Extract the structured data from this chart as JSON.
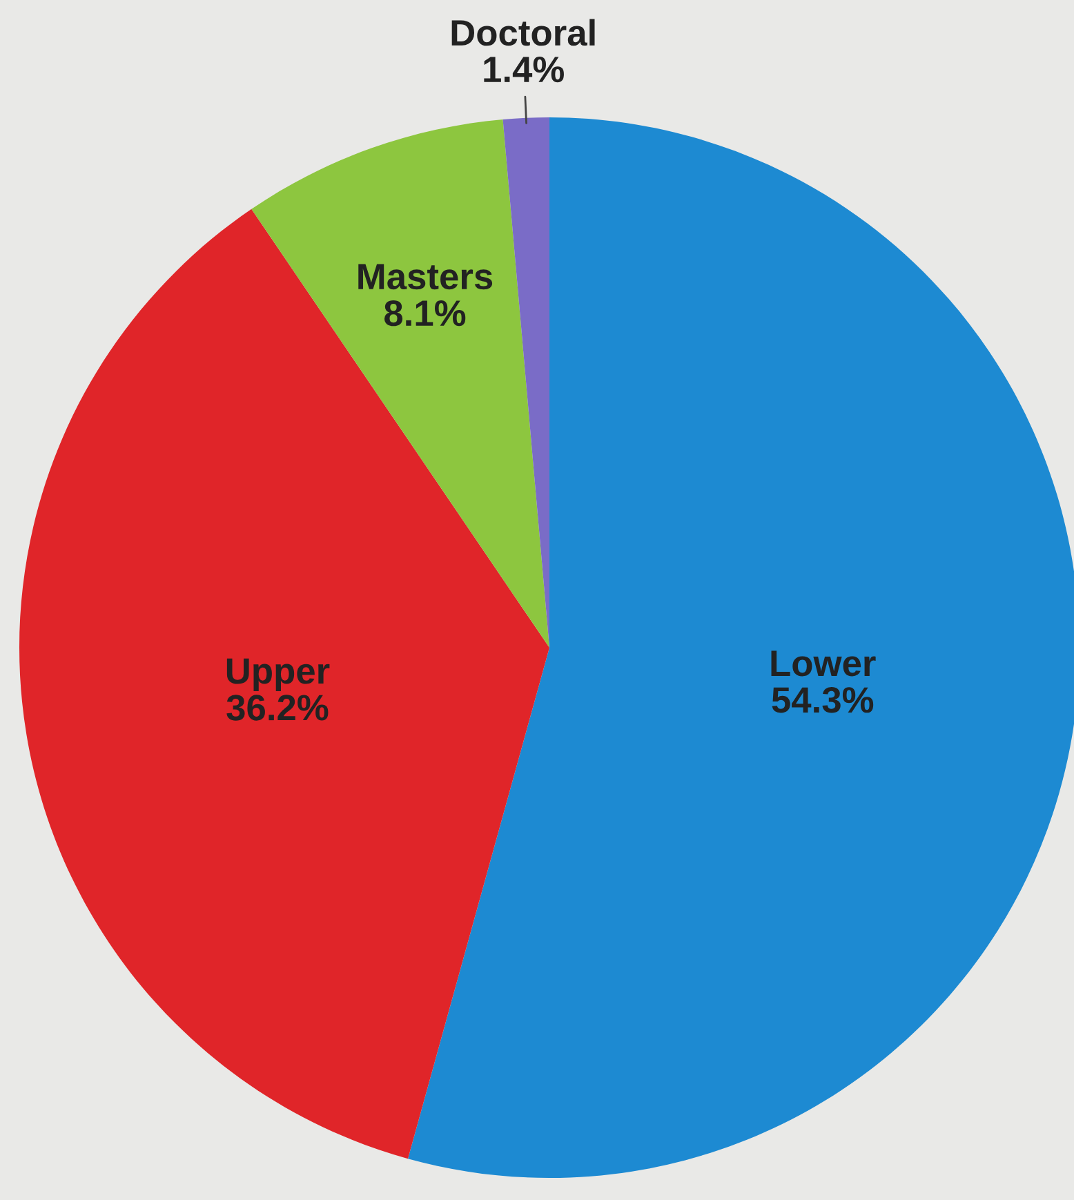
{
  "chart_data": {
    "type": "pie",
    "categories": [
      "Lower",
      "Upper",
      "Masters",
      "Doctoral"
    ],
    "values": [
      54.3,
      36.2,
      8.1,
      1.4
    ],
    "value_labels": [
      "54.3%",
      "36.2%",
      "8.1%",
      "1.4%"
    ],
    "colors": [
      "#1d8ad2",
      "#e02529",
      "#8dc63f",
      "#7a6cc7"
    ]
  }
}
